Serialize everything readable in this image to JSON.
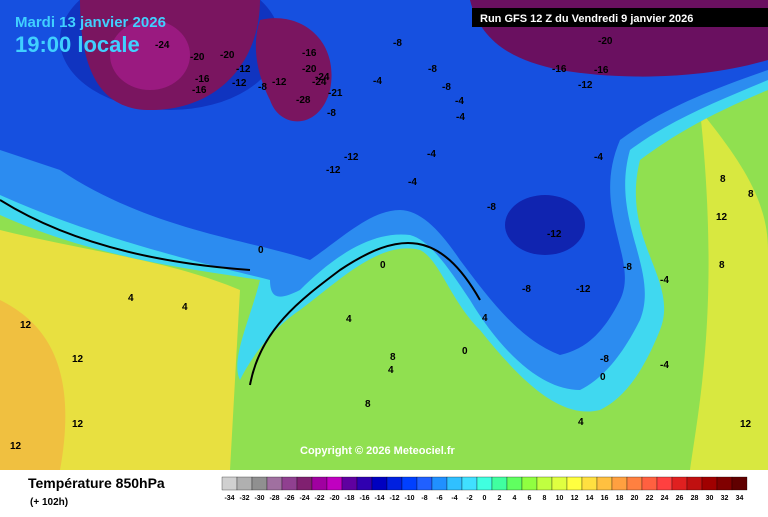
{
  "header": {
    "date": "Mardi 13 janvier 2026",
    "time": "19:00 locale",
    "run": "Run GFS 12 Z du Vendredi 9 janvier 2026"
  },
  "footer": {
    "title": "Température 850hPa",
    "lead": "(+ 102h)",
    "copyright": "Copyright © 2026 Meteociel.fr"
  },
  "colorbar": {
    "labels": [
      "-34",
      "-32",
      "-30",
      "-28",
      "-26",
      "-24",
      "-22",
      "-20",
      "-18",
      "-16",
      "-14",
      "-12",
      "-10",
      "-8",
      "-6",
      "-4",
      "-2",
      "0",
      "2",
      "4",
      "6",
      "8",
      "10",
      "12",
      "14",
      "16",
      "18",
      "20",
      "22",
      "24",
      "26",
      "28",
      "30",
      "32",
      "34"
    ],
    "colors": [
      "#d0d0d0",
      "#b0b0b0",
      "#909090",
      "#a070a0",
      "#904090",
      "#802070",
      "#a000a0",
      "#c000c0",
      "#6000a0",
      "#3000b0",
      "#0000c0",
      "#0020e0",
      "#0040ff",
      "#2060ff",
      "#2090ff",
      "#30c0ff",
      "#40e0ff",
      "#40ffe0",
      "#40ffa0",
      "#60ff60",
      "#90ff40",
      "#c0ff40",
      "#e0ff40",
      "#ffff40",
      "#ffe040",
      "#ffc040",
      "#ffa040",
      "#ff8040",
      "#ff6040",
      "#ff4040",
      "#e02020",
      "#c01010",
      "#a00000",
      "#800000",
      "#600000"
    ]
  },
  "contour_labels": [
    "-24",
    "-20",
    "-20",
    "-16",
    "-16",
    "-12",
    "-8",
    "-12",
    "-12",
    "-16",
    "-20",
    "-24",
    "-28",
    "-24",
    "-21",
    "-8",
    "-4",
    "-8",
    "-8",
    "-4",
    "-4",
    "-12",
    "-8",
    "-4",
    "-12",
    "-20",
    "-16",
    "-16",
    "-12",
    "-8",
    "-4",
    "-4",
    "-8",
    "-12",
    "-12",
    "-8",
    "-8",
    "-4",
    "0",
    "0",
    "4",
    "4",
    "4",
    "8",
    "8",
    "12",
    "12",
    "12",
    "12",
    "8",
    "4",
    "0",
    "0",
    "-4",
    "4",
    "8",
    "12",
    "8",
    "12",
    "4"
  ]
}
